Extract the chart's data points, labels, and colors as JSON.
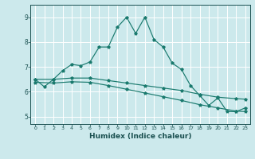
{
  "title": "",
  "xlabel": "Humidex (Indice chaleur)",
  "ylabel": "",
  "bg_color": "#cce9ec",
  "grid_color": "#ffffff",
  "line_color": "#1a7a6e",
  "xlim": [
    -0.5,
    23.5
  ],
  "ylim": [
    4.7,
    9.5
  ],
  "xticks": [
    0,
    1,
    2,
    3,
    4,
    5,
    6,
    7,
    8,
    9,
    10,
    11,
    12,
    13,
    14,
    15,
    16,
    17,
    18,
    19,
    20,
    21,
    22,
    23
  ],
  "yticks": [
    5,
    6,
    7,
    8,
    9
  ],
  "line1_x": [
    0,
    1,
    2,
    3,
    4,
    5,
    6,
    7,
    8,
    9,
    10,
    11,
    12,
    13,
    14,
    15,
    16,
    17,
    18,
    19,
    20,
    21,
    22,
    23
  ],
  "line1_y": [
    6.5,
    6.2,
    6.5,
    6.85,
    7.1,
    7.05,
    7.2,
    7.8,
    7.8,
    8.6,
    9.0,
    8.35,
    9.0,
    8.1,
    7.8,
    7.15,
    6.9,
    6.25,
    5.85,
    5.45,
    5.75,
    5.2,
    5.2,
    5.35
  ],
  "line2_x": [
    0,
    2,
    4,
    6,
    8,
    10,
    12,
    14,
    16,
    18,
    20,
    22,
    23
  ],
  "line2_y": [
    6.5,
    6.5,
    6.55,
    6.55,
    6.45,
    6.35,
    6.25,
    6.15,
    6.05,
    5.9,
    5.78,
    5.72,
    5.7
  ],
  "line3_x": [
    0,
    2,
    4,
    6,
    8,
    10,
    12,
    14,
    16,
    18,
    20,
    22,
    23
  ],
  "line3_y": [
    6.38,
    6.35,
    6.4,
    6.38,
    6.25,
    6.1,
    5.95,
    5.8,
    5.65,
    5.48,
    5.35,
    5.22,
    5.2
  ]
}
